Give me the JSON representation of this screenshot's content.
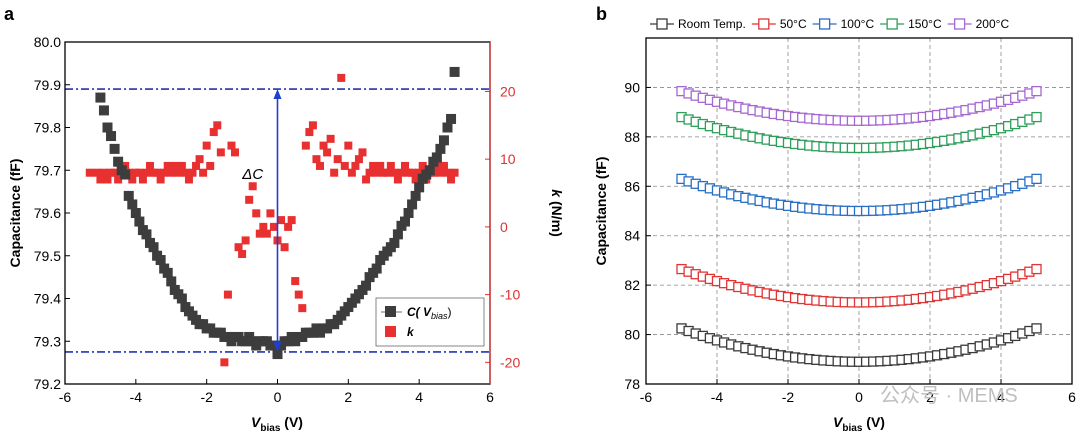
{
  "chart_data": [
    {
      "panel_label": "a",
      "type": "scatter",
      "xlabel_main": "V",
      "xlabel_sub": "bias",
      "xlabel_unit": " (V)",
      "ylabel": "Capacitance (fF)",
      "y2label_italic": "k",
      "y2label_unit": " (N/m)",
      "xlim": [
        -6,
        6
      ],
      "ylim": [
        79.2,
        80.0
      ],
      "y2lim": [
        -23.2,
        27.3
      ],
      "x_ticks": [
        -6,
        -4,
        -2,
        0,
        2,
        4,
        6
      ],
      "x_tick_labels": [
        "-6",
        "-4",
        "-2",
        "0",
        "2",
        "4",
        "6"
      ],
      "y_ticks": [
        79.2,
        79.3,
        79.4,
        79.5,
        79.6,
        79.7,
        79.8,
        79.9,
        80.0
      ],
      "y_tick_labels": [
        "79.2",
        "79.3",
        "79.4",
        "79.5",
        "79.6",
        "79.7",
        "79.8",
        "79.9",
        "80.0"
      ],
      "y2_ticks": [
        -20,
        -10,
        0,
        10,
        20
      ],
      "y2_tick_labels": [
        "-20",
        "-10",
        "0",
        "10",
        "20"
      ],
      "reference_lines": [
        79.89,
        79.275
      ],
      "annotation": {
        "text": "ΔC",
        "x": -0.7,
        "y": 79.68
      },
      "arrow": {
        "x": 0,
        "y_from": 79.275,
        "y_to": 79.89
      },
      "legend": [
        {
          "label_main": "C( V",
          "label_sub": "bias",
          "label_end": ")"
        },
        {
          "label_main": "k"
        }
      ],
      "colors": {
        "capacitance": "#3d3d3d",
        "k": "#e83030",
        "ref_line": "#2233bb",
        "arrow": "#1f3fd0"
      },
      "series": [
        {
          "name": "C(Vbias)",
          "axis": "left",
          "x": [
            -5.0,
            -4.9,
            -4.8,
            -4.7,
            -4.6,
            -4.5,
            -4.4,
            -4.3,
            -4.2,
            -4.1,
            -4.0,
            -3.9,
            -3.8,
            -3.7,
            -3.6,
            -3.5,
            -3.4,
            -3.3,
            -3.2,
            -3.1,
            -3.0,
            -2.9,
            -2.8,
            -2.7,
            -2.6,
            -2.5,
            -2.4,
            -2.3,
            -2.2,
            -2.1,
            -2.0,
            -1.9,
            -1.8,
            -1.7,
            -1.6,
            -1.5,
            -1.4,
            -1.3,
            -1.2,
            -1.1,
            -1.0,
            -0.9,
            -0.8,
            -0.7,
            -0.6,
            -0.5,
            -0.4,
            -0.3,
            -0.2,
            -0.1,
            0.0,
            0.1,
            0.2,
            0.3,
            0.4,
            0.5,
            0.6,
            0.7,
            0.8,
            0.9,
            1.0,
            1.1,
            1.2,
            1.3,
            1.4,
            1.5,
            1.6,
            1.7,
            1.8,
            1.9,
            2.0,
            2.1,
            2.2,
            2.3,
            2.4,
            2.5,
            2.6,
            2.7,
            2.8,
            2.9,
            3.0,
            3.1,
            3.2,
            3.3,
            3.4,
            3.5,
            3.6,
            3.7,
            3.8,
            3.9,
            4.0,
            4.1,
            4.2,
            4.3,
            4.4,
            4.5,
            4.6,
            4.7,
            4.8,
            4.9,
            5.0
          ],
          "y": [
            79.87,
            79.84,
            79.8,
            79.78,
            79.75,
            79.72,
            79.7,
            79.69,
            79.64,
            79.62,
            79.6,
            79.58,
            79.56,
            79.55,
            79.53,
            79.52,
            79.5,
            79.49,
            79.47,
            79.46,
            79.44,
            79.42,
            79.41,
            79.4,
            79.38,
            79.37,
            79.36,
            79.35,
            79.34,
            79.34,
            79.33,
            79.33,
            79.32,
            79.32,
            79.32,
            79.31,
            79.31,
            79.3,
            79.31,
            79.31,
            79.3,
            79.3,
            79.31,
            79.3,
            79.29,
            79.3,
            79.3,
            79.3,
            79.29,
            79.29,
            79.27,
            79.29,
            79.3,
            79.3,
            79.31,
            79.3,
            79.31,
            79.31,
            79.32,
            79.32,
            79.32,
            79.33,
            79.32,
            79.33,
            79.33,
            79.34,
            79.34,
            79.35,
            79.36,
            79.37,
            79.38,
            79.39,
            79.4,
            79.41,
            79.42,
            79.43,
            79.45,
            79.46,
            79.47,
            79.49,
            79.5,
            79.51,
            79.52,
            79.53,
            79.55,
            79.57,
            79.58,
            79.6,
            79.62,
            79.64,
            79.66,
            79.68,
            79.69,
            79.7,
            79.72,
            79.73,
            79.75,
            79.77,
            79.8,
            79.82,
            79.93
          ]
        },
        {
          "name": "k",
          "axis": "right",
          "x": [
            -5.3,
            -5.1,
            -5.0,
            -4.9,
            -4.8,
            -4.7,
            -4.6,
            -4.5,
            -4.4,
            -4.3,
            -4.2,
            -4.1,
            -4.0,
            -3.9,
            -3.8,
            -3.7,
            -3.6,
            -3.5,
            -3.4,
            -3.3,
            -3.2,
            -3.1,
            -3.0,
            -2.9,
            -2.8,
            -2.7,
            -2.6,
            -2.5,
            -2.4,
            -2.3,
            -2.2,
            -2.1,
            -2.0,
            -1.9,
            -1.8,
            -1.7,
            -1.6,
            -1.5,
            -1.4,
            -1.3,
            -1.2,
            -1.1,
            -1.0,
            -0.9,
            -0.8,
            -0.7,
            -0.6,
            -0.5,
            -0.4,
            -0.3,
            -0.2,
            -0.1,
            0.0,
            0.1,
            0.2,
            0.3,
            0.4,
            0.5,
            0.6,
            0.7,
            0.8,
            0.9,
            1.0,
            1.1,
            1.2,
            1.3,
            1.4,
            1.5,
            1.6,
            1.7,
            1.8,
            1.9,
            2.0,
            2.1,
            2.2,
            2.3,
            2.4,
            2.5,
            2.6,
            2.7,
            2.8,
            2.9,
            3.0,
            3.1,
            3.2,
            3.3,
            3.4,
            3.5,
            3.6,
            3.7,
            3.8,
            3.9,
            4.0,
            4.1,
            4.2,
            4.3,
            4.4,
            4.5,
            4.6,
            4.7,
            4.8,
            4.9,
            5.0
          ],
          "y": [
            8,
            8,
            7,
            8,
            7,
            8,
            8,
            7,
            8,
            9,
            8,
            7,
            8,
            8,
            7,
            8,
            9,
            8,
            8,
            7,
            8,
            9,
            8,
            9,
            8,
            9,
            8,
            7,
            8,
            9,
            10,
            8,
            12,
            9,
            14,
            15,
            11,
            -20,
            -10,
            12,
            11,
            -3,
            -4,
            -2,
            4,
            6,
            2,
            -1,
            0,
            -1,
            2,
            0,
            -2,
            1,
            -3,
            0,
            1,
            -8,
            -10,
            -12,
            12,
            14,
            15,
            10,
            9,
            12,
            11,
            13,
            8,
            10,
            22,
            9,
            12,
            8,
            9,
            10,
            11,
            7,
            8,
            9,
            8,
            9,
            8,
            8,
            9,
            8,
            7,
            8,
            9,
            8,
            8,
            7,
            8,
            9,
            7,
            8,
            8,
            9,
            8,
            9,
            8,
            7,
            8
          ]
        }
      ]
    },
    {
      "panel_label": "b",
      "type": "scatter",
      "xlabel_main": "V",
      "xlabel_sub": "bias",
      "xlabel_unit": " (V)",
      "ylabel": "Capacitance (fF)",
      "xlim": [
        -6,
        6
      ],
      "ylim": [
        78,
        92
      ],
      "x_ticks": [
        -6,
        -4,
        -2,
        0,
        2,
        4,
        6
      ],
      "x_tick_labels": [
        "-6",
        "-4",
        "-2",
        "0",
        "2",
        "4",
        "6"
      ],
      "y_ticks": [
        78,
        80,
        82,
        84,
        86,
        88,
        90
      ],
      "y_tick_labels": [
        "78",
        "80",
        "82",
        "84",
        "86",
        "88",
        "90"
      ],
      "grid": true,
      "series": [
        {
          "name": "Room Temp.",
          "color": "#3a3a3a",
          "center": 78.9,
          "edge": 80.25
        },
        {
          "name": "50°C",
          "color": "#e03535",
          "center": 81.3,
          "edge": 82.65
        },
        {
          "name": "100°C",
          "color": "#2a6fc4",
          "center": 85.0,
          "edge": 86.3
        },
        {
          "name": "150°C",
          "color": "#2e9e5a",
          "center": 87.55,
          "edge": 88.8
        },
        {
          "name": "200°C",
          "color": "#a668d0",
          "center": 88.65,
          "edge": 89.85
        }
      ],
      "series_x_range": [
        -5,
        5
      ],
      "series_x_step": 0.2
    }
  ],
  "watermark": {
    "text": "公众号 · MEMS"
  }
}
